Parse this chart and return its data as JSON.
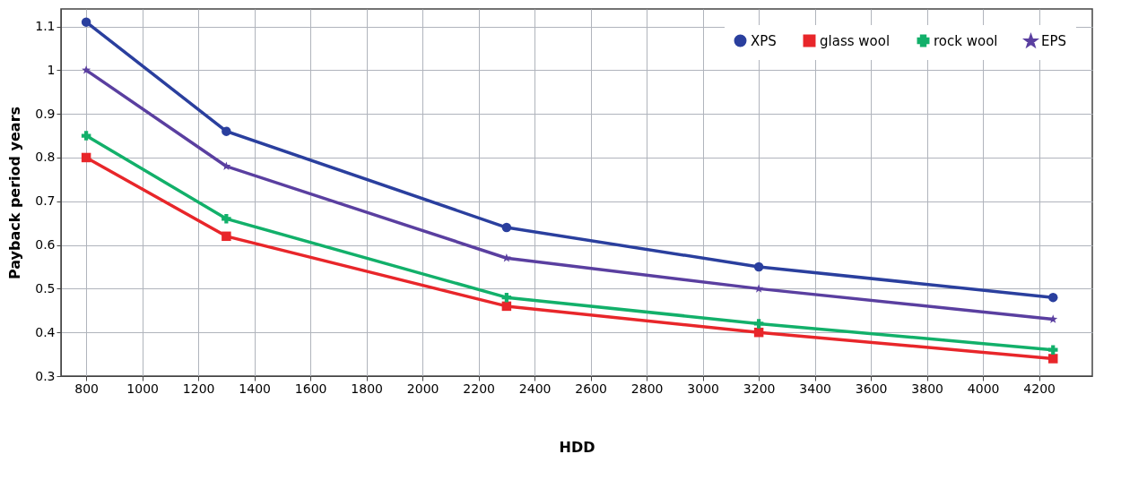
{
  "chart_data": {
    "type": "line",
    "xlabel": "HDD",
    "ylabel": "Payback period years",
    "x": [
      800,
      1300,
      2300,
      3200,
      4250
    ],
    "series": [
      {
        "name": "XPS",
        "color": "#2a3f9e",
        "marker": "circle",
        "values": [
          1.11,
          0.86,
          0.64,
          0.55,
          0.48
        ]
      },
      {
        "name": "glass wool",
        "color": "#e8262a",
        "marker": "square",
        "values": [
          0.8,
          0.62,
          0.46,
          0.4,
          0.34
        ]
      },
      {
        "name": "rock wool",
        "color": "#12b06a",
        "marker": "cross",
        "values": [
          0.85,
          0.66,
          0.48,
          0.42,
          0.36
        ]
      },
      {
        "name": "EPS",
        "color": "#5a3fa0",
        "marker": "star",
        "values": [
          1.0,
          0.78,
          0.57,
          0.5,
          0.43
        ]
      }
    ],
    "xlim": [
      710,
      4390
    ],
    "xticks": [
      800,
      1000,
      1200,
      1400,
      1600,
      1800,
      2000,
      2200,
      2400,
      2600,
      2800,
      3000,
      3200,
      3400,
      3600,
      3800,
      4000,
      4200
    ],
    "ylim": [
      0.3,
      1.14
    ],
    "yticks": [
      0.3,
      0.4,
      0.5,
      0.6,
      0.7,
      0.8,
      0.9,
      1,
      1.1
    ],
    "grid": true,
    "legend": "top right",
    "line_style": "solid"
  }
}
